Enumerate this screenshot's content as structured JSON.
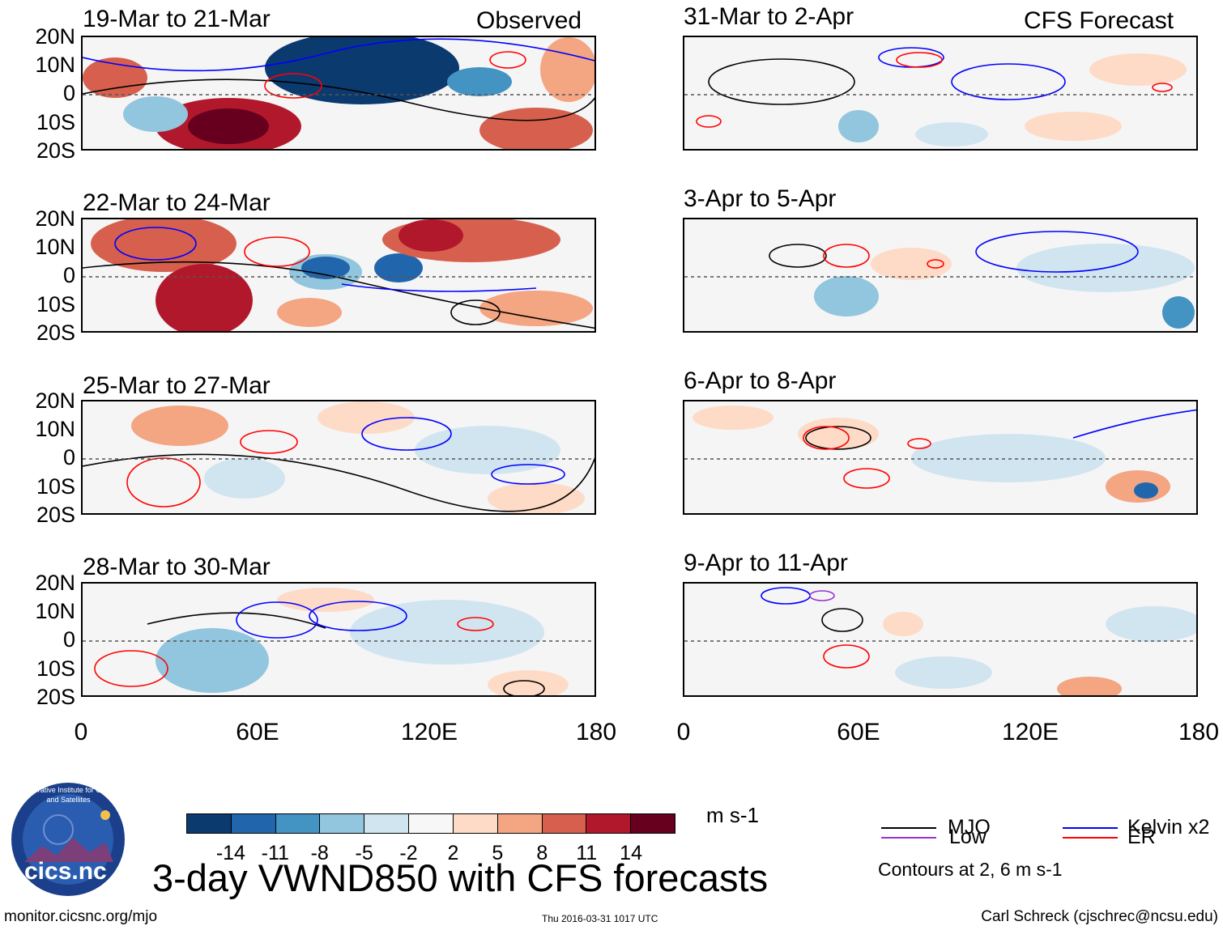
{
  "map": {
    "left_header": "Observed",
    "right_header": "CFS Forecast",
    "panels_left": [
      {
        "title": "19-Mar to 21-Mar"
      },
      {
        "title": "22-Mar to 24-Mar"
      },
      {
        "title": "25-Mar to 27-Mar"
      },
      {
        "title": "28-Mar to 30-Mar"
      }
    ],
    "panels_right": [
      {
        "title": "31-Mar to 2-Apr"
      },
      {
        "title": "3-Apr to 5-Apr"
      },
      {
        "title": "6-Apr to 8-Apr"
      },
      {
        "title": "9-Apr to 11-Apr"
      }
    ],
    "lat_labels": [
      "20N",
      "10N",
      "0",
      "10S",
      "20S"
    ],
    "lon_labels": [
      "0",
      "60E",
      "120E",
      "180"
    ]
  },
  "colorbar": {
    "colors": [
      "#0b3a6f",
      "#2166ac",
      "#4393c3",
      "#92c5de",
      "#d1e5f0",
      "#f7f7f7",
      "#fddbc7",
      "#f4a582",
      "#d6604d",
      "#b2182b",
      "#67001f"
    ],
    "ticks": [
      "-14",
      "-11",
      "-8",
      "-5",
      "-2",
      "2",
      "5",
      "8",
      "11",
      "14"
    ],
    "units": "m s-1"
  },
  "legend": {
    "items": [
      {
        "label": "MJO",
        "color": "#000000"
      },
      {
        "label": "Kelvin x2",
        "color": "#0000ff"
      },
      {
        "label": "Low",
        "color": "#9932cc"
      },
      {
        "label": "ER",
        "color": "#ff0000"
      }
    ],
    "note": "Contours at 2, 6 m s-1"
  },
  "footer": {
    "main_title": "3-day VWND850 with CFS forecasts",
    "url": "monitor.cicsnc.org/mjo",
    "timestamp": "Thu 2016-03-31 1017 UTC",
    "credit": "Carl Schreck (cjschrec@ncsu.edu)",
    "logo_text": "cics.nc",
    "logo_arc_text": "Cooperative Institute for Climate and Satellites"
  }
}
